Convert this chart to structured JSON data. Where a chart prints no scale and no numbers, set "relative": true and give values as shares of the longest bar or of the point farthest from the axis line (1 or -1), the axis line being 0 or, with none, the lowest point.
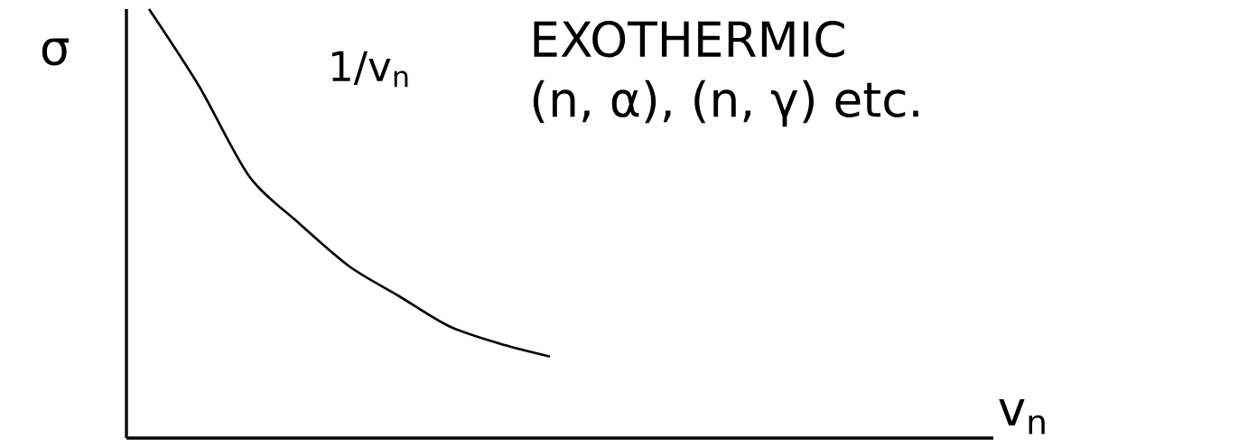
{
  "chart_data": {
    "type": "line",
    "relative": true,
    "ylabel": "σ",
    "categories": [
      null,
      null,
      null,
      null,
      null,
      null,
      null,
      null,
      null
    ],
    "values": [
      1.0,
      0.82,
      0.61,
      0.5,
      0.4,
      0.33,
      0.26,
      0.22,
      0.19
    ],
    "color": "#000000",
    "annotations": [
      "1/v$_{n}$",
      "EXOTHERMIC",
      "(n, α), (n, γ) etc.",
      "v$_{n}$"
    ]
  }
}
